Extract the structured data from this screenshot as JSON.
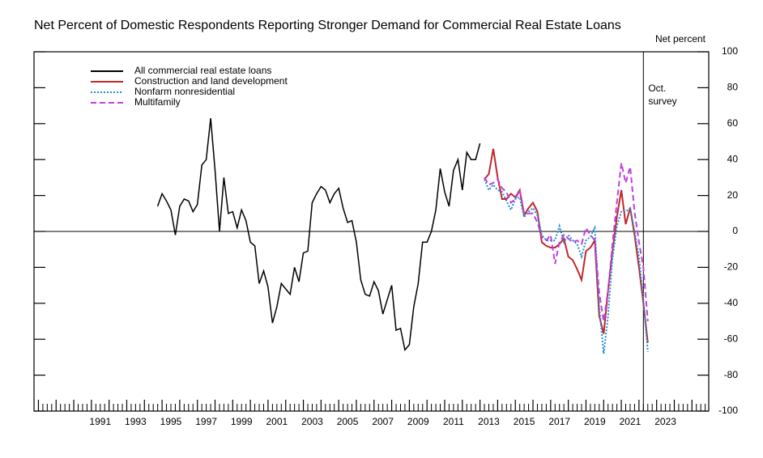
{
  "chart_data": {
    "type": "line",
    "title": "Net Percent of Domestic Respondents Reporting Stronger Demand for Commercial Real Estate Loans",
    "y_label": "Net percent",
    "annotation": {
      "text": "Oct. survey",
      "x": 2022.25
    },
    "legend": "upper left",
    "grid": false,
    "xlim": [
      1987.75,
      2025.95
    ],
    "ylim": [
      -100,
      100
    ],
    "yticks": [
      -100,
      -80,
      -60,
      -40,
      -20,
      0,
      20,
      40,
      60,
      80,
      100
    ],
    "xticks": [
      1991,
      1993,
      1995,
      1997,
      1999,
      2001,
      2003,
      2005,
      2007,
      2009,
      2011,
      2013,
      2015,
      2017,
      2019,
      2021,
      2023
    ],
    "xminorticks": [
      1988,
      1989,
      1990,
      1991,
      1992,
      1993,
      1994,
      1995,
      1996,
      1997,
      1998,
      1999,
      2000,
      2001,
      2002,
      2003,
      2004,
      2005,
      2006,
      2007,
      2008,
      2009,
      2010,
      2011,
      2012,
      2013,
      2014,
      2015,
      2016,
      2017,
      2018,
      2019,
      2020,
      2021,
      2022,
      2023,
      2024,
      2025
    ],
    "series": [
      {
        "name": "All commercial real estate loans",
        "color": "#000000",
        "linestyle": "solid",
        "x": [
          1994.75,
          1995,
          1995.25,
          1995.5,
          1995.75,
          1996,
          1996.25,
          1996.5,
          1996.75,
          1997,
          1997.25,
          1997.5,
          1997.75,
          1998,
          1998.25,
          1998.5,
          1998.75,
          1999,
          1999.25,
          1999.5,
          1999.75,
          2000,
          2000.25,
          2000.5,
          2000.75,
          2001,
          2001.25,
          2001.5,
          2001.75,
          2002,
          2002.25,
          2002.5,
          2002.75,
          2003,
          2003.25,
          2003.5,
          2003.75,
          2004,
          2004.25,
          2004.5,
          2004.75,
          2005,
          2005.25,
          2005.5,
          2005.75,
          2006,
          2006.25,
          2006.5,
          2006.75,
          2007,
          2007.25,
          2007.5,
          2007.75,
          2008,
          2008.25,
          2008.5,
          2008.75,
          2009,
          2009.25,
          2009.5,
          2009.75,
          2010,
          2010.25,
          2010.5,
          2010.75,
          2011,
          2011.25,
          2011.5,
          2011.75,
          2012,
          2012.25,
          2012.5,
          2012.75,
          2013
        ],
        "values": [
          14,
          21,
          17,
          12,
          -2,
          14,
          18,
          17,
          11,
          15,
          37,
          40,
          63,
          34,
          0,
          30,
          10,
          11,
          2,
          12,
          6,
          -6,
          -8,
          -29,
          -22,
          -31,
          -51,
          -42,
          -29,
          -32,
          -35,
          -20,
          -28,
          -12,
          -11,
          16,
          21,
          25,
          23,
          16,
          21,
          24,
          13,
          5,
          6,
          -6,
          -27,
          -35,
          -36,
          -28,
          -33,
          -46,
          -38,
          -30,
          -55,
          -54,
          -66,
          -63,
          -42,
          -29,
          -6,
          -6,
          0,
          12,
          35,
          22,
          14,
          34,
          40,
          23,
          44,
          40,
          40,
          49
        ]
      },
      {
        "name": "Construction and land development",
        "color": "#c0272d",
        "linestyle": "solid",
        "x": [
          2013.25,
          2013.5,
          2013.75,
          2014,
          2014.25,
          2014.5,
          2014.75,
          2015,
          2015.25,
          2015.5,
          2015.75,
          2016,
          2016.25,
          2016.5,
          2016.75,
          2017,
          2017.25,
          2017.5,
          2017.75,
          2018,
          2018.25,
          2018.5,
          2018.75,
          2019,
          2019.25,
          2019.5,
          2019.75,
          2020,
          2020.25,
          2020.5,
          2020.75,
          2021,
          2021.25,
          2021.5,
          2021.75,
          2022,
          2022.25,
          2022.5
        ],
        "values": [
          29,
          32,
          46,
          30,
          18,
          18,
          21,
          19,
          23,
          9,
          13,
          16,
          11,
          -6,
          -8,
          -9,
          -9,
          -7,
          -4,
          -14,
          -16,
          -21,
          -27,
          -11,
          -9,
          -5,
          -47,
          -57,
          -33,
          -11,
          8,
          23,
          4,
          13,
          -2,
          -20,
          -40,
          -62
        ]
      },
      {
        "name": "Nonfarm nonresidential",
        "color": "#1e8fd5",
        "linestyle": "dotted",
        "x": [
          2013.25,
          2013.5,
          2013.75,
          2014,
          2014.25,
          2014.5,
          2014.75,
          2015,
          2015.25,
          2015.5,
          2015.75,
          2016,
          2016.25,
          2016.5,
          2016.75,
          2017,
          2017.25,
          2017.5,
          2017.75,
          2018,
          2018.25,
          2018.5,
          2018.75,
          2019,
          2019.25,
          2019.5,
          2019.75,
          2020,
          2020.25,
          2020.5,
          2020.75,
          2021,
          2021.25,
          2021.5,
          2021.75,
          2022,
          2022.25,
          2022.5
        ],
        "values": [
          29,
          23,
          26,
          23,
          22,
          17,
          12,
          18,
          19,
          8,
          11,
          13,
          9,
          -2,
          -5,
          -5,
          -5,
          3,
          -6,
          -2,
          -5,
          -7,
          -14,
          -5,
          -3,
          2,
          -42,
          -68,
          -47,
          -15,
          3,
          11,
          11,
          13,
          0,
          -14,
          -38,
          -67
        ]
      },
      {
        "name": "Multifamily",
        "color": "#c03fe0",
        "linestyle": "dashed",
        "x": [
          2013.25,
          2013.5,
          2013.75,
          2014,
          2014.25,
          2014.5,
          2014.75,
          2015,
          2015.25,
          2015.5,
          2015.75,
          2016,
          2016.25,
          2016.5,
          2016.75,
          2017,
          2017.25,
          2017.5,
          2017.75,
          2018,
          2018.25,
          2018.5,
          2018.75,
          2019,
          2019.25,
          2019.5,
          2019.75,
          2020,
          2020.25,
          2020.5,
          2020.75,
          2021,
          2021.25,
          2021.5,
          2021.75,
          2022,
          2022.25,
          2022.5
        ],
        "values": [
          30,
          26,
          27,
          29,
          24,
          22,
          16,
          18,
          23,
          10,
          10,
          10,
          5,
          -3,
          -5,
          -2,
          -18,
          -6,
          -2,
          -4,
          -6,
          -5,
          -7,
          2,
          -2,
          -5,
          -34,
          -50,
          -33,
          -7,
          16,
          38,
          27,
          36,
          11,
          -6,
          -20,
          -50
        ]
      }
    ]
  }
}
